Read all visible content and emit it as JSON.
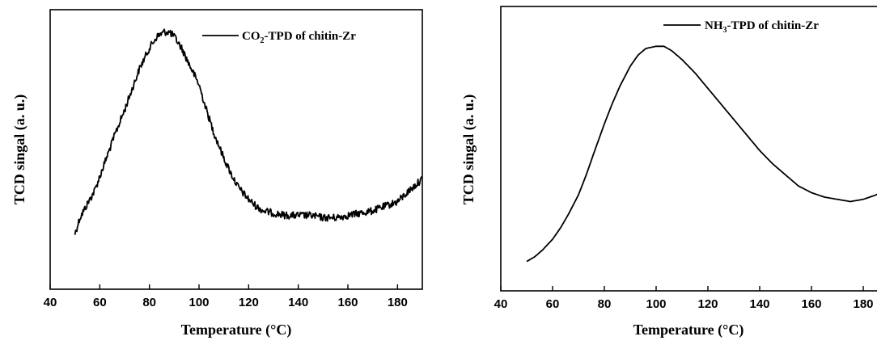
{
  "chart_data": [
    {
      "type": "line",
      "xlabel": "Temperature (°C)",
      "ylabel": "TCD singal (a. u.)",
      "xlim": [
        40,
        190
      ],
      "yticks": "none",
      "xticks": [
        40,
        60,
        80,
        100,
        120,
        140,
        160,
        180
      ],
      "legend": {
        "location": "top-right"
      },
      "noise": "high",
      "series": [
        {
          "name": "CO2-TPD of chitin-Zr",
          "x": [
            50,
            52,
            55,
            58,
            60,
            63,
            66,
            70,
            73,
            76,
            80,
            83,
            86,
            88,
            90,
            93,
            96,
            100,
            103,
            106,
            110,
            113,
            116,
            120,
            123,
            126,
            130,
            135,
            140,
            145,
            150,
            155,
            160,
            165,
            170,
            175,
            180,
            183,
            186,
            190
          ],
          "y": [
            0.12,
            0.19,
            0.25,
            0.31,
            0.37,
            0.46,
            0.55,
            0.66,
            0.75,
            0.84,
            0.93,
            0.98,
            1.0,
            1.0,
            0.98,
            0.93,
            0.86,
            0.77,
            0.66,
            0.56,
            0.45,
            0.38,
            0.32,
            0.27,
            0.24,
            0.22,
            0.21,
            0.2,
            0.2,
            0.2,
            0.19,
            0.19,
            0.2,
            0.21,
            0.22,
            0.24,
            0.26,
            0.29,
            0.32,
            0.36
          ]
        }
      ]
    },
    {
      "type": "line",
      "xlabel": "Temperature (°C)",
      "ylabel": "TCD singal (a. u.)",
      "xlim": [
        40,
        190
      ],
      "yticks": "none",
      "xticks": [
        40,
        60,
        80,
        100,
        120,
        140,
        160,
        180
      ],
      "legend": {
        "location": "top-right"
      },
      "noise": "low",
      "series": [
        {
          "name": "NH3-TPD of chitin-Zr",
          "x": [
            50,
            53,
            56,
            60,
            63,
            66,
            70,
            73,
            76,
            80,
            83,
            86,
            90,
            93,
            96,
            100,
            103,
            106,
            110,
            115,
            120,
            125,
            130,
            135,
            140,
            145,
            150,
            155,
            160,
            165,
            170,
            175,
            180,
            185,
            188
          ],
          "y": [
            0.03,
            0.05,
            0.08,
            0.13,
            0.18,
            0.24,
            0.33,
            0.42,
            0.52,
            0.65,
            0.74,
            0.82,
            0.91,
            0.96,
            0.99,
            1.0,
            1.0,
            0.98,
            0.94,
            0.88,
            0.81,
            0.74,
            0.67,
            0.6,
            0.53,
            0.47,
            0.42,
            0.37,
            0.34,
            0.32,
            0.31,
            0.3,
            0.31,
            0.33,
            0.35
          ]
        }
      ]
    }
  ]
}
